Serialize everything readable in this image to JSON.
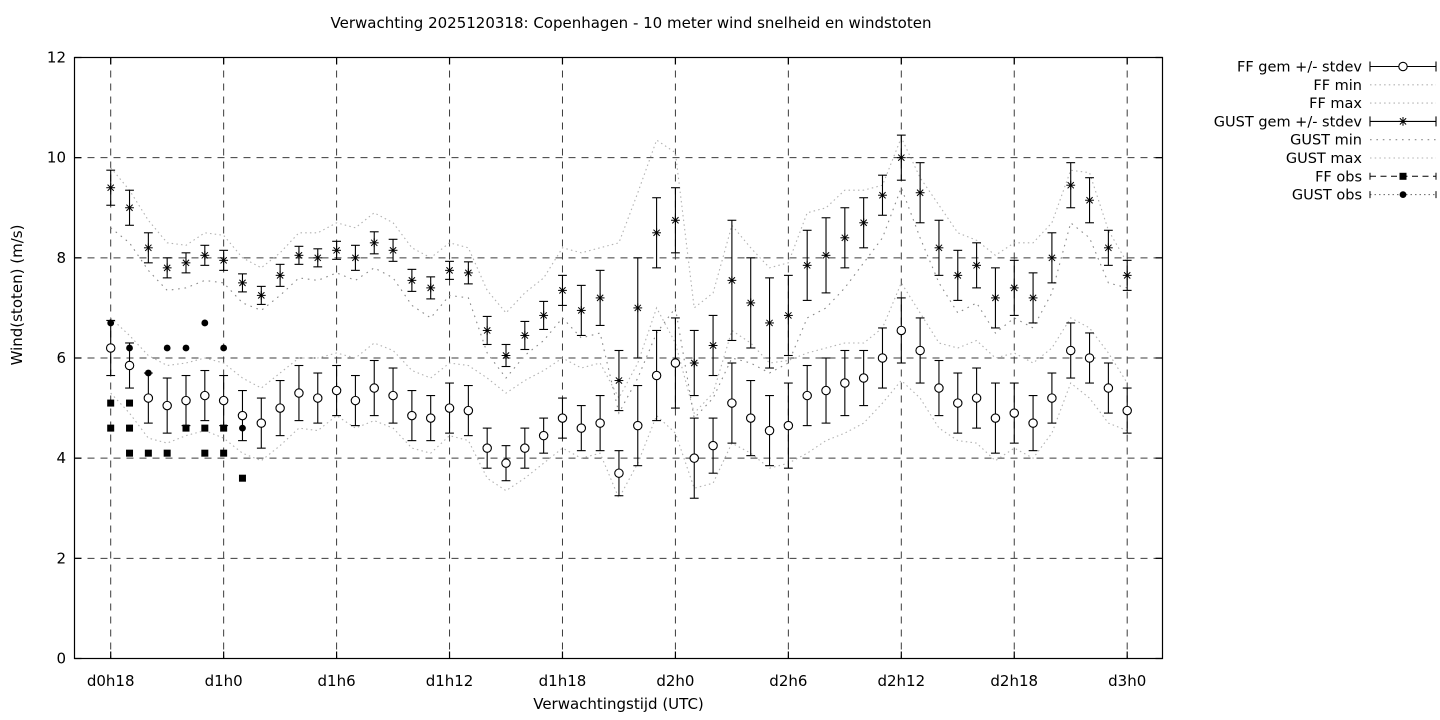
{
  "title": "Verwachting 2025120318: Copenhagen - 10 meter wind snelheid en windstoten",
  "axes": {
    "ylabel": "Wind(stoten) (m/s)",
    "xlabel": "Verwachtingstijd (UTC)",
    "ylim": [
      0,
      12
    ],
    "yticks": [
      0,
      2,
      4,
      6,
      8,
      10,
      12
    ],
    "xticks": [
      {
        "hour": 0,
        "label": "d0h18"
      },
      {
        "hour": 6,
        "label": "d1h0"
      },
      {
        "hour": 12,
        "label": "d1h6"
      },
      {
        "hour": 18,
        "label": "d1h12"
      },
      {
        "hour": 24,
        "label": "d1h18"
      },
      {
        "hour": 30,
        "label": "d2h0"
      },
      {
        "hour": 36,
        "label": "d2h6"
      },
      {
        "hour": 42,
        "label": "d2h12"
      },
      {
        "hour": 48,
        "label": "d2h18"
      },
      {
        "hour": 54,
        "label": "d3h0"
      }
    ],
    "grid": true
  },
  "colors": {
    "foreground": "#000000",
    "background": "#ffffff",
    "band_dots": "#b2b2b2",
    "gust_min_dots": "#8a8a8a",
    "obs_dots": "#777777"
  },
  "legend": [
    {
      "label": "FF gem +/- stdev",
      "style": "errorbar",
      "marker": "open-circle"
    },
    {
      "label": "FF min",
      "style": "dots-fine",
      "marker": "none"
    },
    {
      "label": "FF max",
      "style": "dots-fine",
      "marker": "none"
    },
    {
      "label": "GUST gem +/- stdev",
      "style": "errorbar",
      "marker": "asterisk"
    },
    {
      "label": "GUST min",
      "style": "dots-sparse",
      "marker": "none"
    },
    {
      "label": "GUST max",
      "style": "dots-fine",
      "marker": "none"
    },
    {
      "label": "FF obs",
      "style": "dash-caps",
      "marker": "filled-square"
    },
    {
      "label": "GUST obs",
      "style": "dots-caps",
      "marker": "filled-circle"
    }
  ],
  "chart_data": {
    "type": "line",
    "x_unit": "hours after d0h18, hourly steps 0..54",
    "series": [
      {
        "name": "FF gem +/- stdev",
        "type": "errorbar",
        "marker": "open-circle",
        "values": [
          6.2,
          5.85,
          5.2,
          5.05,
          5.15,
          5.25,
          5.15,
          4.85,
          4.7,
          5.0,
          5.3,
          5.2,
          5.35,
          5.15,
          5.4,
          5.25,
          4.85,
          4.8,
          5.0,
          4.95,
          4.2,
          3.9,
          4.2,
          4.45,
          4.8,
          4.6,
          4.7,
          3.7,
          4.65,
          5.65,
          5.9,
          4.0,
          4.25,
          5.1,
          4.8,
          4.55,
          4.65,
          5.25,
          5.35,
          5.5,
          5.6,
          6.0,
          6.55,
          6.15,
          5.4,
          5.1,
          5.2,
          4.8,
          4.9,
          4.7,
          5.2,
          6.15,
          6.0,
          5.4,
          4.95
        ],
        "stdev": [
          0.55,
          0.45,
          0.5,
          0.55,
          0.5,
          0.5,
          0.5,
          0.5,
          0.5,
          0.55,
          0.55,
          0.5,
          0.5,
          0.5,
          0.55,
          0.55,
          0.5,
          0.45,
          0.5,
          0.5,
          0.4,
          0.35,
          0.4,
          0.35,
          0.4,
          0.45,
          0.55,
          0.45,
          0.8,
          0.9,
          0.9,
          0.8,
          0.55,
          0.8,
          0.75,
          0.7,
          0.85,
          0.6,
          0.65,
          0.65,
          0.55,
          0.6,
          0.65,
          0.65,
          0.55,
          0.6,
          0.6,
          0.7,
          0.6,
          0.55,
          0.5,
          0.55,
          0.5,
          0.5,
          0.45
        ]
      },
      {
        "name": "FF min",
        "type": "dotted",
        "values": [
          5.3,
          4.9,
          4.4,
          4.3,
          4.45,
          4.55,
          4.4,
          4.1,
          3.95,
          4.25,
          4.6,
          4.55,
          4.85,
          4.6,
          4.75,
          4.6,
          4.2,
          4.1,
          4.45,
          4.35,
          3.6,
          3.35,
          3.6,
          3.9,
          4.2,
          4.0,
          4.1,
          3.2,
          3.9,
          4.85,
          4.5,
          3.4,
          3.5,
          4.3,
          4.1,
          3.8,
          3.9,
          4.1,
          4.35,
          4.5,
          4.7,
          5.1,
          5.55,
          5.2,
          4.6,
          4.35,
          4.3,
          3.95,
          4.2,
          4.0,
          4.5,
          5.5,
          5.2,
          4.7,
          4.55
        ]
      },
      {
        "name": "FF max",
        "type": "dotted",
        "values": [
          6.8,
          6.45,
          6.05,
          5.85,
          5.9,
          6.0,
          5.9,
          5.6,
          5.4,
          5.7,
          6.0,
          6.0,
          6.1,
          6.0,
          6.3,
          6.15,
          5.75,
          5.6,
          5.9,
          5.85,
          5.6,
          5.3,
          5.55,
          5.75,
          6.0,
          5.8,
          5.9,
          5.2,
          5.9,
          7.0,
          6.3,
          4.9,
          5.3,
          6.55,
          6.3,
          5.9,
          5.95,
          6.1,
          6.2,
          6.3,
          6.3,
          6.6,
          7.5,
          6.9,
          6.3,
          6.2,
          6.35,
          6.0,
          6.1,
          5.9,
          6.2,
          6.8,
          6.6,
          6.1,
          5.5
        ]
      },
      {
        "name": "GUST gem +/- stdev",
        "type": "errorbar",
        "marker": "asterisk",
        "values": [
          9.4,
          9.0,
          8.2,
          7.8,
          7.9,
          8.05,
          7.95,
          7.5,
          7.25,
          7.65,
          8.05,
          8.0,
          8.15,
          8.0,
          8.3,
          8.15,
          7.55,
          7.4,
          7.75,
          7.7,
          6.55,
          6.05,
          6.45,
          6.85,
          7.35,
          6.95,
          7.2,
          5.55,
          7.0,
          8.5,
          8.75,
          5.9,
          6.25,
          7.55,
          7.1,
          6.7,
          6.85,
          7.85,
          8.05,
          8.4,
          8.7,
          9.25,
          10.0,
          9.3,
          8.2,
          7.65,
          7.85,
          7.2,
          7.4,
          7.2,
          8.0,
          9.45,
          9.15,
          8.2,
          7.65
        ],
        "stdev": [
          0.35,
          0.35,
          0.3,
          0.2,
          0.2,
          0.2,
          0.2,
          0.18,
          0.18,
          0.22,
          0.18,
          0.18,
          0.18,
          0.25,
          0.22,
          0.22,
          0.22,
          0.22,
          0.18,
          0.22,
          0.28,
          0.22,
          0.28,
          0.28,
          0.3,
          0.5,
          0.55,
          0.6,
          1.0,
          0.7,
          0.65,
          0.65,
          0.6,
          1.2,
          0.9,
          0.9,
          0.8,
          0.7,
          0.75,
          0.6,
          0.5,
          0.4,
          0.45,
          0.6,
          0.55,
          0.5,
          0.45,
          0.6,
          0.55,
          0.5,
          0.5,
          0.45,
          0.45,
          0.35,
          0.3
        ]
      },
      {
        "name": "GUST min",
        "type": "dotted-sparse",
        "values": [
          8.6,
          8.3,
          7.75,
          7.35,
          7.4,
          7.55,
          7.5,
          7.1,
          6.95,
          7.25,
          7.6,
          7.55,
          7.7,
          7.55,
          7.8,
          7.6,
          7.05,
          6.8,
          7.25,
          7.2,
          6.1,
          5.6,
          6.05,
          6.35,
          6.8,
          6.4,
          6.5,
          4.9,
          5.6,
          6.5,
          7.0,
          4.8,
          5.2,
          6.0,
          5.9,
          5.7,
          5.9,
          6.8,
          7.0,
          7.4,
          7.9,
          8.4,
          9.4,
          8.4,
          7.5,
          6.9,
          7.1,
          6.5,
          6.8,
          6.6,
          7.3,
          8.7,
          8.4,
          7.5,
          7.4
        ]
      },
      {
        "name": "GUST max",
        "type": "dotted",
        "values": [
          9.8,
          9.35,
          8.75,
          8.3,
          8.25,
          8.5,
          8.45,
          8.0,
          7.8,
          8.1,
          8.5,
          8.5,
          8.7,
          8.6,
          8.9,
          8.7,
          8.2,
          8.0,
          8.3,
          8.2,
          7.35,
          6.9,
          7.3,
          7.6,
          8.2,
          8.1,
          8.2,
          8.3,
          9.3,
          10.35,
          10.1,
          7.0,
          7.3,
          8.65,
          8.2,
          7.8,
          7.9,
          8.9,
          9.0,
          9.35,
          9.35,
          9.45,
          10.4,
          9.6,
          9.05,
          8.5,
          8.35,
          8.05,
          8.3,
          8.3,
          8.7,
          9.75,
          9.7,
          8.55,
          7.9
        ]
      },
      {
        "name": "FF obs",
        "type": "points",
        "marker": "filled-square",
        "points": [
          [
            0,
            5.1
          ],
          [
            0,
            4.6
          ],
          [
            1,
            5.1
          ],
          [
            1,
            4.6
          ],
          [
            1,
            4.1
          ],
          [
            2,
            4.1
          ],
          [
            3,
            4.1
          ],
          [
            4,
            4.6
          ],
          [
            5,
            4.6
          ],
          [
            5,
            4.1
          ],
          [
            6,
            4.6
          ],
          [
            6,
            4.1
          ],
          [
            7,
            3.6
          ]
        ]
      },
      {
        "name": "GUST obs",
        "type": "points",
        "marker": "filled-circle",
        "points": [
          [
            0,
            6.7
          ],
          [
            1,
            6.2
          ],
          [
            2,
            5.7
          ],
          [
            3,
            6.2
          ],
          [
            4,
            6.2
          ],
          [
            5,
            6.7
          ],
          [
            6,
            6.2
          ],
          [
            7,
            4.6
          ]
        ]
      }
    ]
  }
}
